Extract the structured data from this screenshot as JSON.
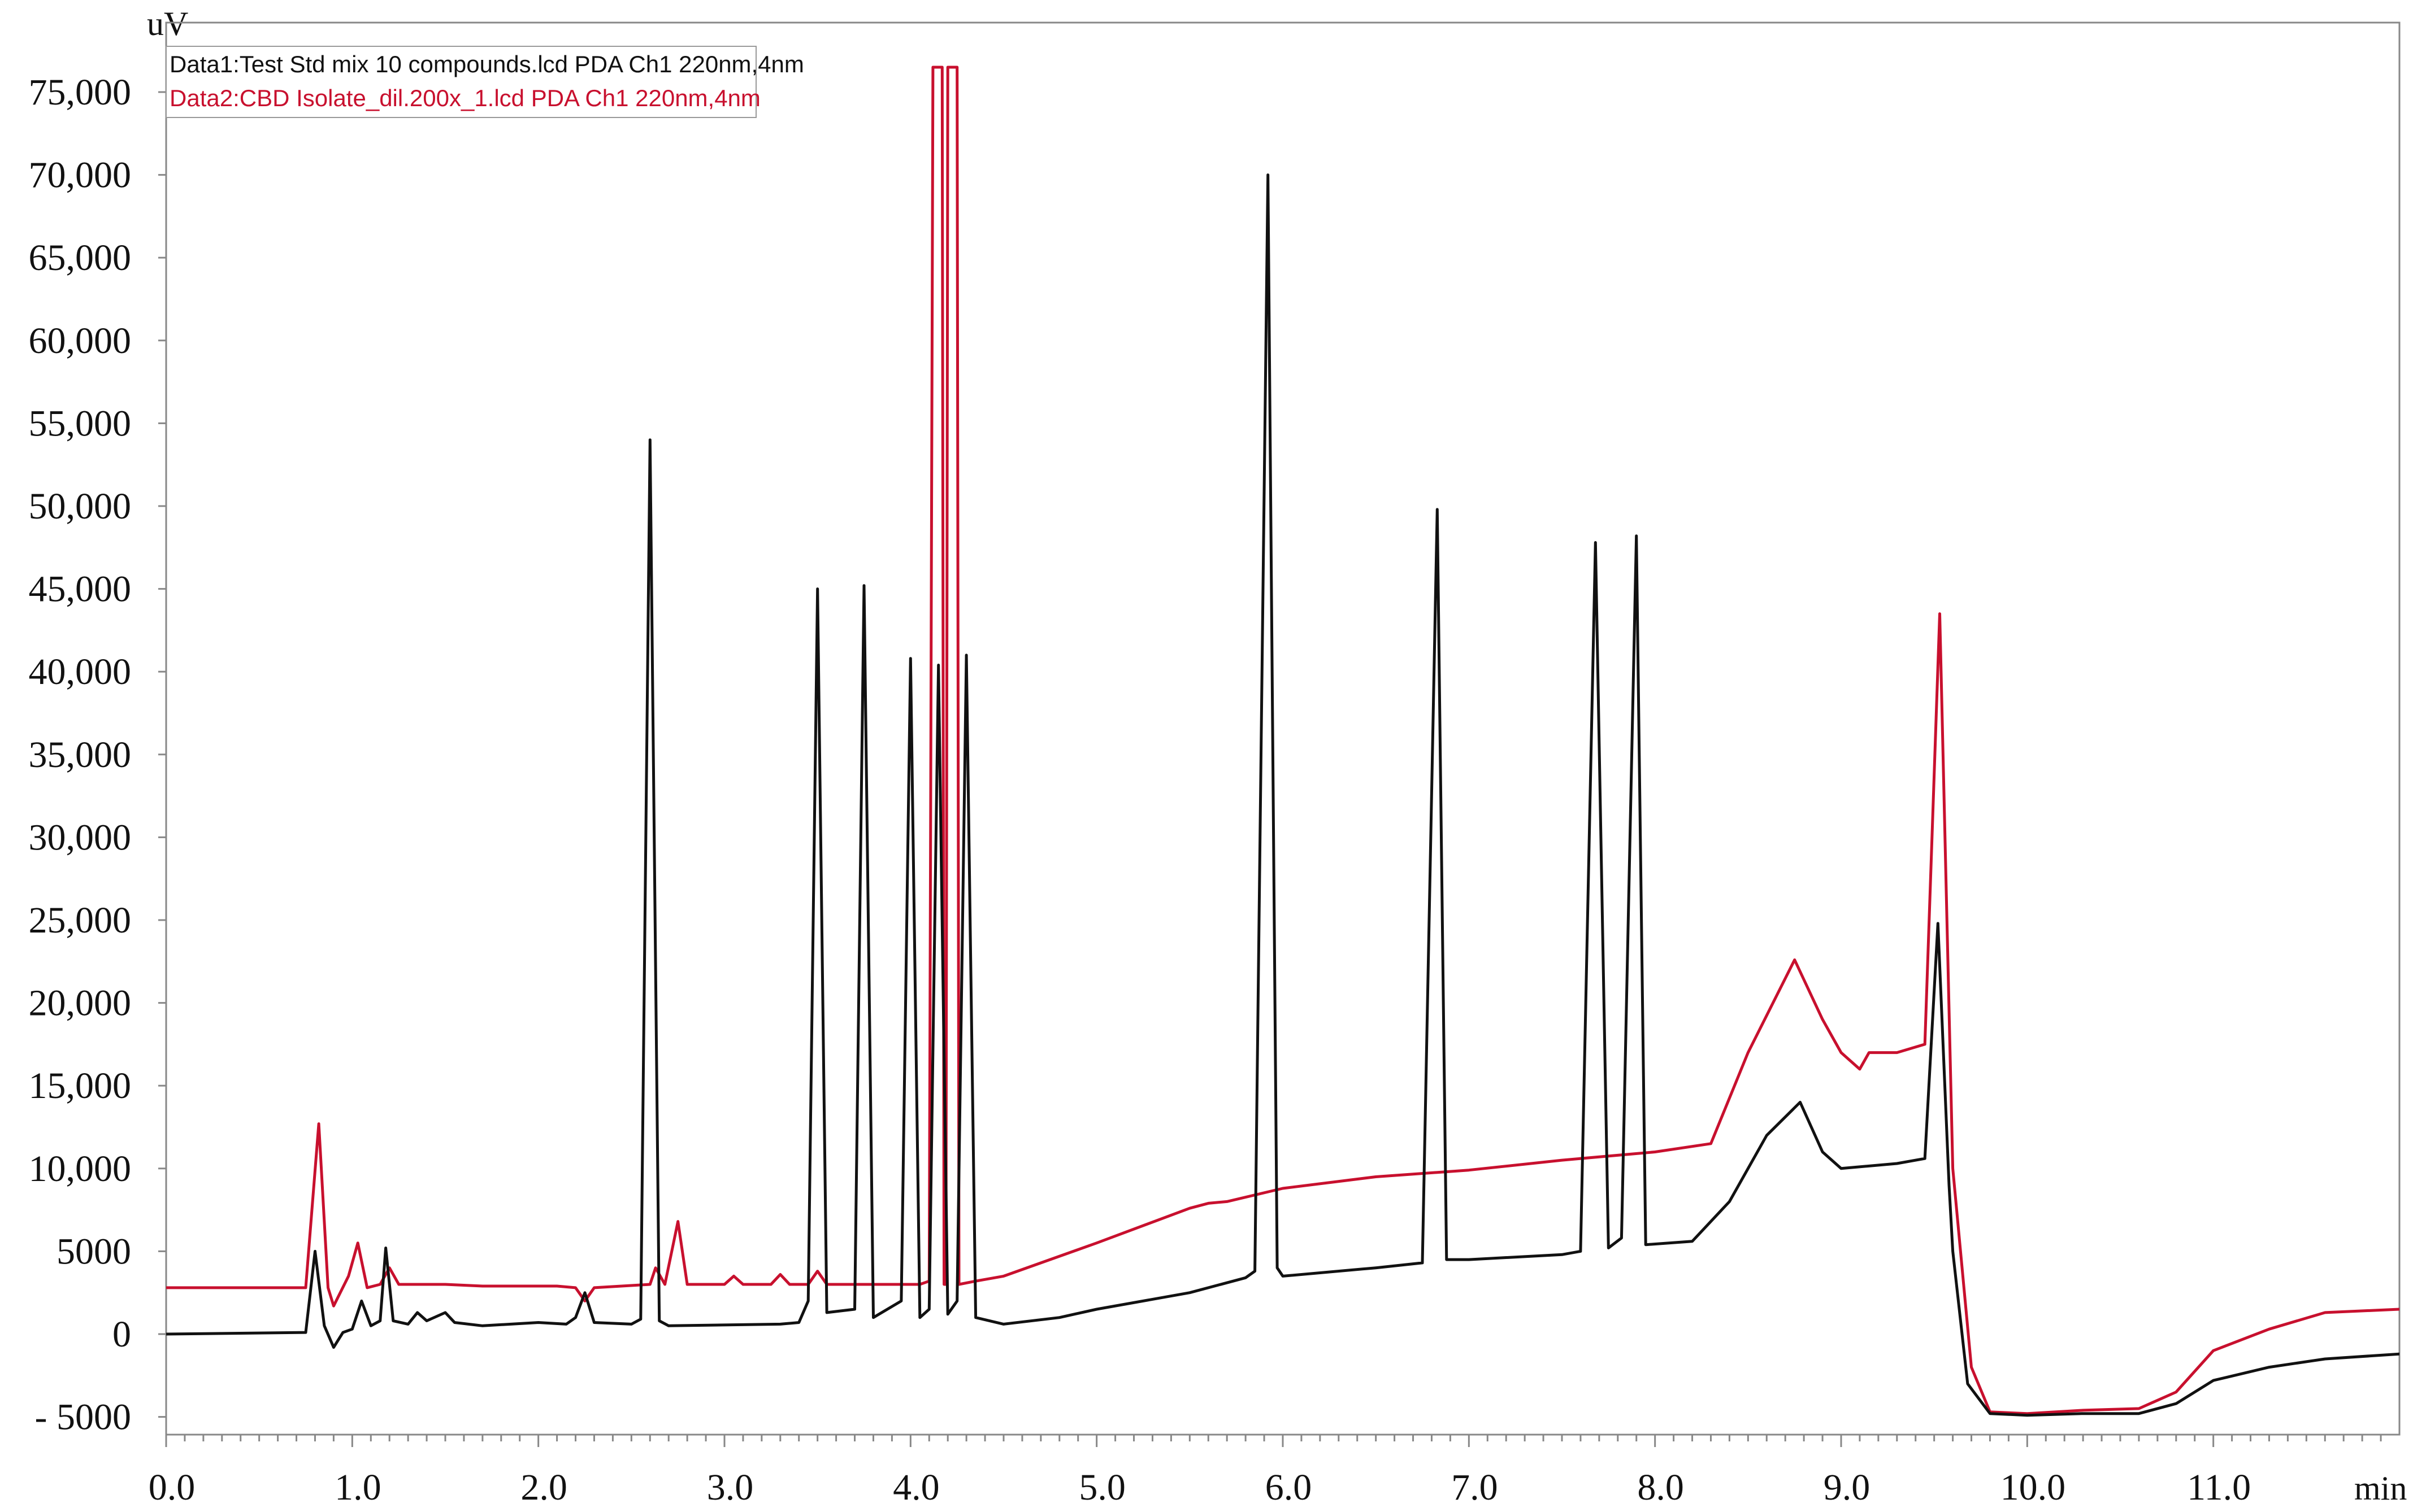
{
  "chart_data": {
    "type": "line",
    "y_unit_label": "uV",
    "x_unit_label": "min",
    "xlim": [
      0,
      12
    ],
    "ylim": [
      -5000,
      77000
    ],
    "grid": false,
    "legend_placement": "top-left",
    "x_ticks": [
      0,
      1,
      2,
      3,
      4,
      5,
      6,
      7,
      8,
      9,
      10,
      11
    ],
    "x_tick_labels": [
      "0.0",
      "1.0",
      "2.0",
      "3.0",
      "4.0",
      "5.0",
      "6.0",
      "7.0",
      "8.0",
      "9.0",
      "10.0",
      "11.0"
    ],
    "y_ticks": [
      -5000,
      0,
      5000,
      10000,
      15000,
      20000,
      25000,
      30000,
      35000,
      40000,
      45000,
      50000,
      55000,
      60000,
      65000,
      70000,
      75000
    ],
    "y_tick_labels": [
      "- 5000",
      "0",
      "5000",
      "10,000",
      "15,000",
      "20,000",
      "25,000",
      "30,000",
      "35,000",
      "40,000",
      "45,000",
      "50,000",
      "55,000",
      "60,000",
      "65,000",
      "70,000",
      "75,000"
    ],
    "series": [
      {
        "name": "Data1:Test Std mix 10 compounds.lcd PDA Ch1 220nm,4nm",
        "color": "#111111",
        "points": [
          [
            0,
            0
          ],
          [
            0.75,
            100
          ],
          [
            0.8,
            5000
          ],
          [
            0.85,
            500
          ],
          [
            0.9,
            -800
          ],
          [
            0.95,
            100
          ],
          [
            1.0,
            300
          ],
          [
            1.05,
            2000
          ],
          [
            1.1,
            500
          ],
          [
            1.15,
            800
          ],
          [
            1.18,
            5200
          ],
          [
            1.22,
            800
          ],
          [
            1.3,
            600
          ],
          [
            1.35,
            1300
          ],
          [
            1.4,
            800
          ],
          [
            1.5,
            1300
          ],
          [
            1.55,
            700
          ],
          [
            1.7,
            500
          ],
          [
            2.0,
            700
          ],
          [
            2.15,
            600
          ],
          [
            2.2,
            1000
          ],
          [
            2.25,
            2500
          ],
          [
            2.3,
            700
          ],
          [
            2.5,
            600
          ],
          [
            2.55,
            900
          ],
          [
            2.6,
            54000
          ],
          [
            2.65,
            800
          ],
          [
            2.7,
            500
          ],
          [
            3.3,
            600
          ],
          [
            3.4,
            700
          ],
          [
            3.45,
            2000
          ],
          [
            3.5,
            45000
          ],
          [
            3.55,
            1300
          ],
          [
            3.7,
            1500
          ],
          [
            3.75,
            45200
          ],
          [
            3.8,
            1000
          ],
          [
            3.95,
            2000
          ],
          [
            4.0,
            40800
          ],
          [
            4.05,
            1000
          ],
          [
            4.1,
            1500
          ],
          [
            4.15,
            40400
          ],
          [
            4.2,
            1200
          ],
          [
            4.25,
            2000
          ],
          [
            4.3,
            41000
          ],
          [
            4.35,
            1000
          ],
          [
            4.5,
            600
          ],
          [
            4.8,
            1000
          ],
          [
            5.0,
            1500
          ],
          [
            5.5,
            2500
          ],
          [
            5.8,
            3400
          ],
          [
            5.85,
            3800
          ],
          [
            5.92,
            70000
          ],
          [
            5.97,
            4000
          ],
          [
            6.0,
            3500
          ],
          [
            6.5,
            4000
          ],
          [
            6.75,
            4300
          ],
          [
            6.83,
            49800
          ],
          [
            6.88,
            4500
          ],
          [
            7.0,
            4500
          ],
          [
            7.5,
            4800
          ],
          [
            7.6,
            5000
          ],
          [
            7.68,
            47800
          ],
          [
            7.75,
            5200
          ],
          [
            7.82,
            5800
          ],
          [
            7.9,
            48200
          ],
          [
            7.95,
            5400
          ],
          [
            8.2,
            5600
          ],
          [
            8.4,
            8000
          ],
          [
            8.6,
            12000
          ],
          [
            8.78,
            14000
          ],
          [
            8.9,
            11000
          ],
          [
            9.0,
            10000
          ],
          [
            9.3,
            10300
          ],
          [
            9.45,
            10600
          ],
          [
            9.52,
            24800
          ],
          [
            9.58,
            9000
          ],
          [
            9.6,
            5000
          ],
          [
            9.68,
            -3000
          ],
          [
            9.8,
            -4800
          ],
          [
            10.0,
            -4900
          ],
          [
            10.3,
            -4800
          ],
          [
            10.6,
            -4800
          ],
          [
            10.8,
            -4200
          ],
          [
            11.0,
            -2800
          ],
          [
            11.3,
            -2000
          ],
          [
            11.6,
            -1500
          ],
          [
            12.0,
            -1200
          ]
        ]
      },
      {
        "name": "Data2:CBD Isolate_dil.200x_1.lcd PDA Ch1 220nm,4nm",
        "color": "#c8102e",
        "points": [
          [
            0,
            2800
          ],
          [
            0.75,
            2800
          ],
          [
            0.82,
            12700
          ],
          [
            0.87,
            2800
          ],
          [
            0.9,
            1700
          ],
          [
            0.98,
            3500
          ],
          [
            1.03,
            5500
          ],
          [
            1.08,
            2800
          ],
          [
            1.15,
            3000
          ],
          [
            1.2,
            4000
          ],
          [
            1.25,
            3000
          ],
          [
            1.5,
            3000
          ],
          [
            1.7,
            2900
          ],
          [
            2.1,
            2900
          ],
          [
            2.2,
            2800
          ],
          [
            2.25,
            2000
          ],
          [
            2.3,
            2800
          ],
          [
            2.6,
            3000
          ],
          [
            2.63,
            4000
          ],
          [
            2.68,
            3000
          ],
          [
            2.75,
            6800
          ],
          [
            2.8,
            3000
          ],
          [
            3.0,
            3000
          ],
          [
            3.05,
            3500
          ],
          [
            3.1,
            3000
          ],
          [
            3.25,
            3000
          ],
          [
            3.3,
            3600
          ],
          [
            3.35,
            3000
          ],
          [
            3.45,
            3000
          ],
          [
            3.5,
            3800
          ],
          [
            3.55,
            3000
          ],
          [
            4.05,
            3000
          ],
          [
            4.1,
            3200
          ],
          [
            4.12,
            76500
          ],
          [
            4.17,
            76500
          ],
          [
            4.18,
            3000
          ],
          [
            4.19,
            3000
          ],
          [
            4.2,
            76500
          ],
          [
            4.25,
            76500
          ],
          [
            4.26,
            3000
          ],
          [
            4.35,
            3200
          ],
          [
            4.5,
            3500
          ],
          [
            5.0,
            5500
          ],
          [
            5.5,
            7600
          ],
          [
            5.6,
            7900
          ],
          [
            5.7,
            8000
          ],
          [
            6.0,
            8800
          ],
          [
            6.5,
            9500
          ],
          [
            7.0,
            9900
          ],
          [
            7.5,
            10500
          ],
          [
            8.0,
            11000
          ],
          [
            8.3,
            11500
          ],
          [
            8.5,
            17000
          ],
          [
            8.75,
            22600
          ],
          [
            8.9,
            19000
          ],
          [
            9.0,
            17000
          ],
          [
            9.1,
            16000
          ],
          [
            9.15,
            17000
          ],
          [
            9.3,
            17000
          ],
          [
            9.45,
            17500
          ],
          [
            9.53,
            43500
          ],
          [
            9.6,
            10000
          ],
          [
            9.7,
            -2000
          ],
          [
            9.8,
            -4700
          ],
          [
            10.0,
            -4800
          ],
          [
            10.3,
            -4600
          ],
          [
            10.6,
            -4500
          ],
          [
            10.8,
            -3500
          ],
          [
            11.0,
            -1000
          ],
          [
            11.3,
            300
          ],
          [
            11.6,
            1300
          ],
          [
            12.0,
            1500
          ]
        ]
      }
    ]
  }
}
